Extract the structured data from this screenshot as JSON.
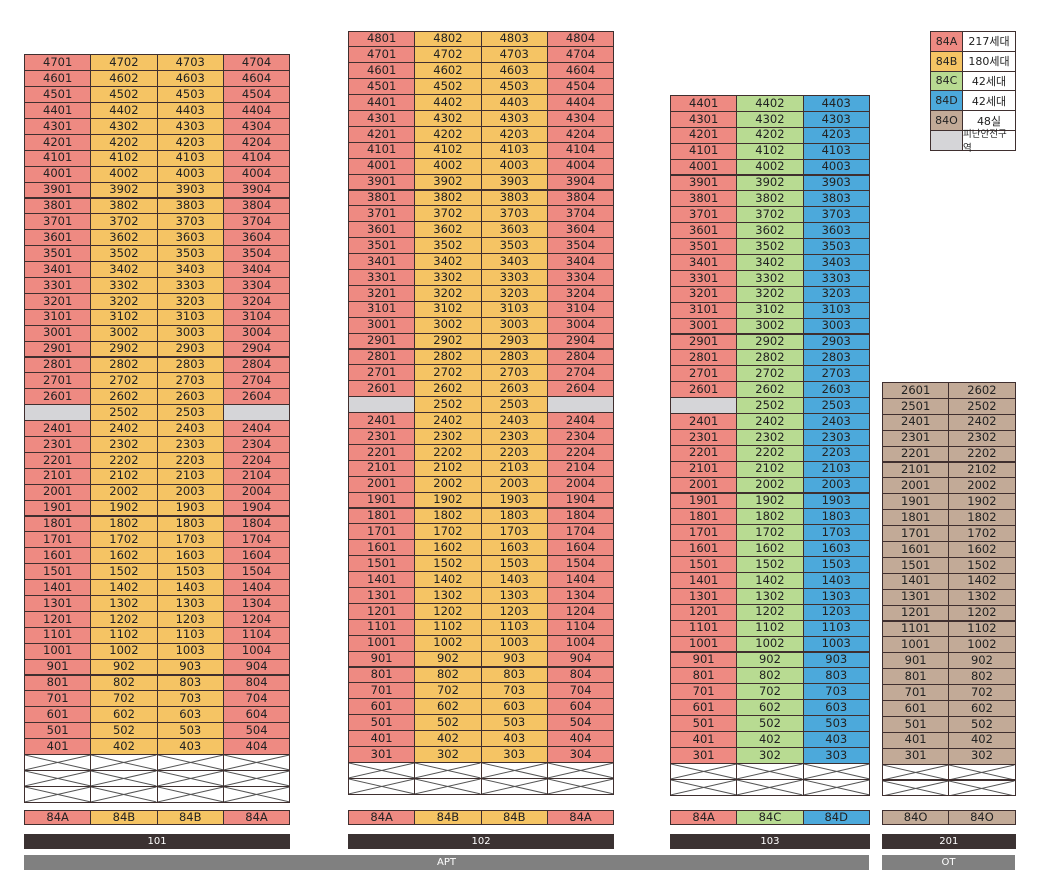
{
  "colors": {
    "84A": "#ee8a82",
    "84B": "#f5c464",
    "84C": "#b8db92",
    "84D": "#4ca9db",
    "84O": "#c2aa97",
    "refuge": "#d5d5d8",
    "bar_dark": "#3b3232",
    "bar_grey": "#808080"
  },
  "legend": [
    {
      "type": "84A",
      "label": "84A",
      "count": "217세대"
    },
    {
      "type": "84B",
      "label": "84B",
      "count": "180세대"
    },
    {
      "type": "84C",
      "label": "84C",
      "count": "42세대"
    },
    {
      "type": "84D",
      "label": "84D",
      "count": "42세대"
    },
    {
      "type": "84O",
      "label": "84O",
      "count": "48실"
    },
    {
      "type": "refuge",
      "label": "",
      "count": "피난안전구역"
    }
  ],
  "buildings": [
    {
      "name": "101",
      "units": [
        "01",
        "02",
        "03",
        "04"
      ],
      "types": [
        "84A",
        "84B",
        "84B",
        "84A"
      ],
      "top_floor": 47,
      "bottom_floor": 4,
      "refuge_floor": 25,
      "refuge_units": [
        "02",
        "03"
      ],
      "pilotis_rows": 3
    },
    {
      "name": "102",
      "units": [
        "01",
        "02",
        "03",
        "04"
      ],
      "types": [
        "84A",
        "84B",
        "84B",
        "84A"
      ],
      "top_floor": 48,
      "bottom_floor": 3,
      "refuge_floor": 25,
      "refuge_units": [
        "02",
        "03"
      ],
      "pilotis_rows": 2
    },
    {
      "name": "103",
      "units": [
        "01",
        "02",
        "03"
      ],
      "types": [
        "84A",
        "84C",
        "84D"
      ],
      "top_floor": 44,
      "bottom_floor": 3,
      "refuge_floor": 25,
      "refuge_units": [
        "02",
        "03"
      ],
      "pilotis_rows": 2
    },
    {
      "name": "201",
      "units": [
        "01",
        "02"
      ],
      "types": [
        "84O",
        "84O"
      ],
      "top_floor": 26,
      "bottom_floor": 3,
      "refuge_floor": null,
      "refuge_units": [],
      "pilotis_rows": 2
    }
  ],
  "groups": [
    {
      "label": "APT"
    },
    {
      "label": "OT"
    }
  ]
}
